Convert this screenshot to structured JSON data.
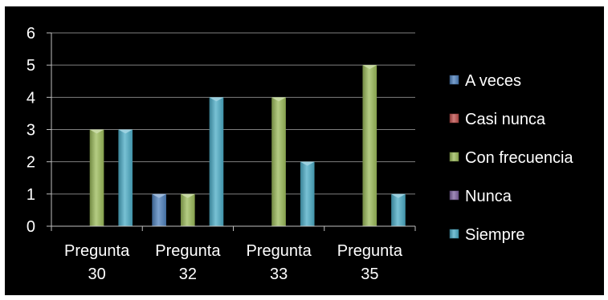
{
  "chart_data": {
    "type": "bar",
    "title": "",
    "xlabel": "",
    "ylabel": "",
    "ylim": [
      0,
      6
    ],
    "yticks": [
      0,
      1,
      2,
      3,
      4,
      5,
      6
    ],
    "grid": true,
    "legend_position": "right",
    "categories": [
      [
        "Pregunta",
        "30"
      ],
      [
        "Pregunta",
        "32"
      ],
      [
        "Pregunta",
        "33"
      ],
      [
        "Pregunta",
        "35"
      ]
    ],
    "series": [
      {
        "name": "A veces",
        "color": "#4F81BD",
        "values": [
          0,
          1,
          0,
          0
        ]
      },
      {
        "name": "Casi nunca",
        "color": "#C0504D",
        "values": [
          0,
          0,
          0,
          0
        ]
      },
      {
        "name": "Con frecuencia",
        "color": "#9BBB59",
        "values": [
          3,
          1,
          4,
          5
        ]
      },
      {
        "name": "Nunca",
        "color": "#8064A2",
        "values": [
          0,
          0,
          0,
          0
        ]
      },
      {
        "name": "Siempre",
        "color": "#4BACC6",
        "values": [
          3,
          4,
          2,
          1
        ]
      }
    ]
  }
}
